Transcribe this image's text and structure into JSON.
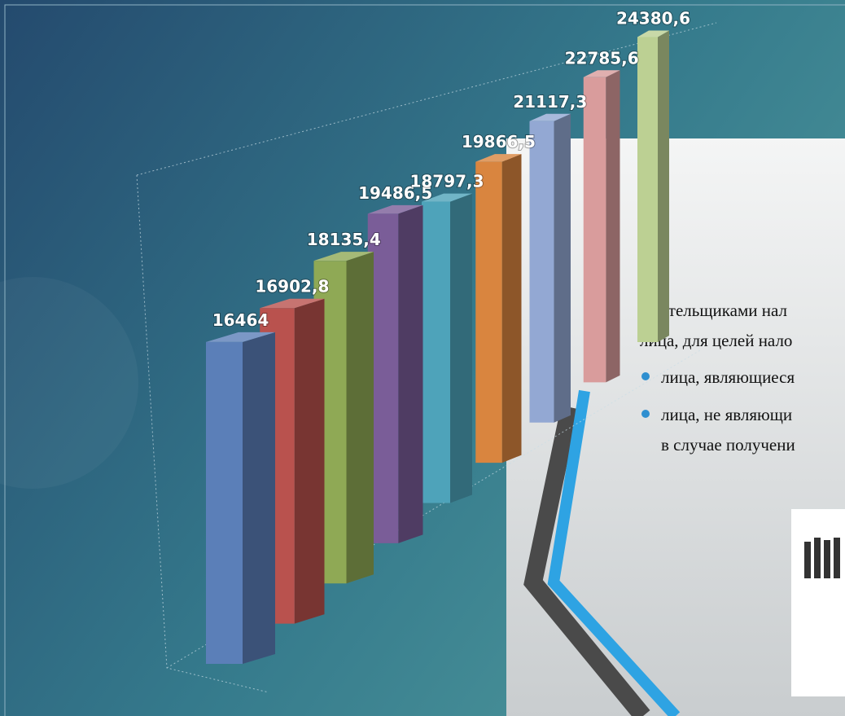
{
  "chart_data": {
    "type": "bar3d",
    "categories": [
      null,
      null,
      null,
      null,
      null,
      null,
      null,
      null,
      null
    ],
    "values": [
      16464,
      16902.8,
      18135.4,
      19486.5,
      18797.3,
      19866.5,
      21117.3,
      22785.6,
      24380.6
    ],
    "value_labels": [
      "16464",
      "16902,8",
      "18135,4",
      "19486,5",
      "18797,3",
      "19866,5",
      "21117,3",
      "22785,6",
      "24380,6"
    ],
    "colors": [
      "#5b7fb8",
      "#b9524e",
      "#8fa955",
      "#7a5d98",
      "#4ea3ba",
      "#d9853f",
      "#93a8d3",
      "#d99c9c",
      "#bcd093"
    ],
    "ylim": [
      0,
      25000
    ]
  },
  "background_slide": {
    "lines": [
      "ательщиками нал",
      "лица, для целей нало",
      "лица, являющиеся",
      "лица, не являющи",
      "в случае получени"
    ]
  }
}
